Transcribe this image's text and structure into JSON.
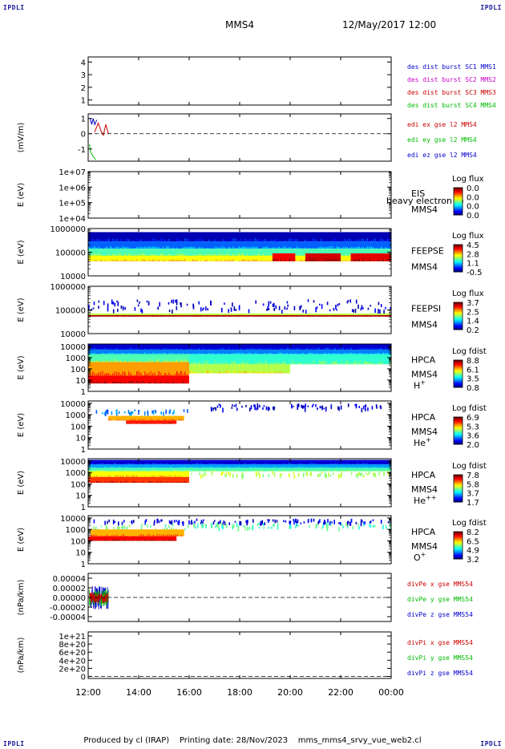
{
  "header": {
    "corner_label": "IPDLI",
    "spacecraft": "MMS4",
    "datetime": "12/May/2017 12:00"
  },
  "footer": {
    "produced_by": "Produced by cl (IRAP)",
    "printing_date": "Printing date: 28/Nov/2023",
    "filename": "mms_mms4_srvy_vue_web2.cl"
  },
  "chart_data": {
    "type": "heatmap",
    "time_axis": {
      "ticks": [
        "12:00",
        "14:00",
        "16:00",
        "18:00",
        "20:00",
        "22:00",
        "00:00"
      ],
      "range_hours": [
        12,
        24
      ]
    },
    "panels": [
      {
        "id": "des_dist",
        "kind": "line",
        "ylabel": "",
        "yticks": [
          "1",
          "2",
          "3",
          "4"
        ],
        "ylim": [
          0.6,
          4.4
        ],
        "legend": [
          {
            "name": "des dist burst SC1 MMS1",
            "color": "#0000cc"
          },
          {
            "name": "des dist burst SC2 MMS2",
            "color": "#cc00cc"
          },
          {
            "name": "des dist burst SC3 MMS3",
            "color": "#cc0000"
          },
          {
            "name": "des dist burst SC4 MMS4",
            "color": "#00bb00"
          }
        ],
        "series": []
      },
      {
        "id": "edi",
        "kind": "line",
        "ylabel": "(mV/m)",
        "yticks": [
          "-1",
          "0",
          "1"
        ],
        "ylim": [
          -1.8,
          1.3
        ],
        "zero_line": true,
        "legend": [
          {
            "name": "edi ex gse l2 MMS4",
            "color": "#cc0000"
          },
          {
            "name": "edi ey gse l2 MMS4",
            "color": "#00bb00"
          },
          {
            "name": "edi ez gse l2 MMS4",
            "color": "#0000cc"
          }
        ],
        "series": [
          {
            "color": "#00bb00",
            "x": [
              12.05,
              12.1,
              12.2,
              12.3
            ],
            "y": [
              -0.7,
              -1.2,
              -1.5,
              -1.7
            ]
          },
          {
            "color": "#0000cc",
            "x": [
              12.08,
              12.14,
              12.2,
              12.26,
              12.34
            ],
            "y": [
              1.0,
              0.6,
              1.0,
              0.6,
              0.9
            ]
          },
          {
            "color": "#cc0000",
            "x": [
              12.25,
              12.3,
              12.4,
              12.5,
              12.6,
              12.7,
              12.8
            ],
            "y": [
              0.1,
              0.3,
              0.7,
              0.2,
              -0.1,
              0.6,
              0.0
            ]
          }
        ]
      },
      {
        "id": "eis",
        "kind": "spectrogram",
        "ylog": true,
        "ylabel": "E (eV)",
        "yticks": [
          "1e+04",
          "1e+05",
          "1e+06",
          "1e+07"
        ],
        "ylim": [
          4,
          7
        ],
        "instrument": "EIS",
        "sc": "MMS4",
        "species": "",
        "overlay_text": "heavy electron to",
        "cbar_title": "Log flux",
        "cbar_ticks": [
          "0.0",
          "0.0",
          "0.0",
          "0.0"
        ],
        "bands": []
      },
      {
        "id": "feeps_e",
        "kind": "spectrogram",
        "ylog": true,
        "ylabel": "E (eV)",
        "yticks": [
          "10000",
          "100000",
          "1000000"
        ],
        "ylim": [
          4,
          6
        ],
        "instrument": "FEEPSE",
        "sc": "MMS4",
        "species": "",
        "cbar_title": "Log flux",
        "cbar_ticks": [
          "4.5",
          "2.8",
          "1.1",
          "-0.5"
        ],
        "bands": [
          {
            "t": [
              12.0,
              24.0
            ],
            "e": [
              5.45,
              5.85
            ],
            "v": 0.05
          },
          {
            "t": [
              12.0,
              24.0
            ],
            "e": [
              5.15,
              5.45
            ],
            "v": 0.22
          },
          {
            "t": [
              12.0,
              24.0
            ],
            "e": [
              4.85,
              5.15
            ],
            "v": 0.45
          },
          {
            "t": [
              12.0,
              24.0
            ],
            "e": [
              4.62,
              4.85
            ],
            "v": 0.62
          },
          {
            "t": [
              19.3,
              20.2
            ],
            "e": [
              4.62,
              4.95
            ],
            "v": 0.88
          },
          {
            "t": [
              20.6,
              22.0
            ],
            "e": [
              4.62,
              4.95
            ],
            "v": 0.92
          },
          {
            "t": [
              22.4,
              24.0
            ],
            "e": [
              4.62,
              4.95
            ],
            "v": 0.9
          }
        ]
      },
      {
        "id": "feeps_i",
        "kind": "spectrogram",
        "ylog": true,
        "ylabel": "E (eV)",
        "yticks": [
          "10000",
          "100000",
          "1000000"
        ],
        "ylim": [
          4,
          6
        ],
        "instrument": "FEEPSI",
        "sc": "MMS4",
        "species": "",
        "cbar_title": "Log flux",
        "cbar_ticks": [
          "3.7",
          "2.5",
          "1.4",
          "0.2"
        ],
        "bands": [
          {
            "t": [
              12.0,
              24.0
            ],
            "e": [
              5.0,
              5.45
            ],
            "v": 0.08,
            "sparse": true
          },
          {
            "t": [
              12.0,
              24.0
            ],
            "e": [
              4.78,
              4.85
            ],
            "v": 0.55
          },
          {
            "t": [
              12.0,
              24.0
            ],
            "e": [
              4.72,
              4.78
            ],
            "v": 0.95
          }
        ]
      },
      {
        "id": "hpca_h",
        "kind": "spectrogram",
        "ylog": true,
        "ylabel": "E (eV)",
        "yticks": [
          "1",
          "10",
          "100",
          "1000",
          "10000"
        ],
        "ylim": [
          0,
          4.2
        ],
        "instrument": "HPCA",
        "sc": "MMS4",
        "species": "H",
        "charge": "+",
        "cbar_title": "Log fdist",
        "cbar_ticks": [
          "8.8",
          "6.1",
          "3.5",
          "0.8"
        ],
        "bands": [
          {
            "t": [
              12.0,
              24.0
            ],
            "e": [
              3.7,
              4.2
            ],
            "v": 0.08
          },
          {
            "t": [
              12.0,
              24.0
            ],
            "e": [
              3.3,
              3.7
            ],
            "v": 0.25
          },
          {
            "t": [
              12.0,
              16.0
            ],
            "e": [
              2.6,
              3.3
            ],
            "v": 0.45
          },
          {
            "t": [
              16.0,
              24.0
            ],
            "e": [
              2.4,
              3.3
            ],
            "v": 0.42
          },
          {
            "t": [
              12.0,
              16.0
            ],
            "e": [
              1.4,
              2.6
            ],
            "v": 0.72
          },
          {
            "t": [
              12.0,
              16.0
            ],
            "e": [
              0.7,
              1.4
            ],
            "v": 0.88
          },
          {
            "t": [
              16.0,
              20.0
            ],
            "e": [
              1.6,
              2.4
            ],
            "v": 0.55
          }
        ]
      },
      {
        "id": "hpca_he1",
        "kind": "spectrogram",
        "ylog": true,
        "ylabel": "E (eV)",
        "yticks": [
          "1",
          "10",
          "100",
          "1000",
          "10000"
        ],
        "ylim": [
          0,
          4.2
        ],
        "instrument": "HPCA",
        "sc": "MMS4",
        "species": "He",
        "charge": "+",
        "cbar_title": "Log fdist",
        "cbar_ticks": [
          "6.9",
          "5.3",
          "3.6",
          "2.0"
        ],
        "bands": [
          {
            "t": [
              12.3,
              16.0
            ],
            "e": [
              3.2,
              3.5
            ],
            "v": 0.25,
            "sparse": true
          },
          {
            "t": [
              12.8,
              15.8
            ],
            "e": [
              2.5,
              2.9
            ],
            "v": 0.7
          },
          {
            "t": [
              13.5,
              15.5
            ],
            "e": [
              2.2,
              2.5
            ],
            "v": 0.85
          },
          {
            "t": [
              16.5,
              24.0
            ],
            "e": [
              3.6,
              4.0
            ],
            "v": 0.08,
            "sparse": true
          }
        ]
      },
      {
        "id": "hpca_he2",
        "kind": "spectrogram",
        "ylog": true,
        "ylabel": "E (eV)",
        "yticks": [
          "1",
          "10",
          "100",
          "1000",
          "10000"
        ],
        "ylim": [
          0,
          4.2
        ],
        "instrument": "HPCA",
        "sc": "MMS4",
        "species": "He",
        "charge": "++",
        "cbar_title": "Log fdist",
        "cbar_ticks": [
          "7.8",
          "5.8",
          "3.7",
          "1.7"
        ],
        "bands": [
          {
            "t": [
              12.0,
              24.0
            ],
            "e": [
              3.7,
              4.1
            ],
            "v": 0.08
          },
          {
            "t": [
              12.0,
              24.0
            ],
            "e": [
              3.4,
              3.7
            ],
            "v": 0.28
          },
          {
            "t": [
              12.0,
              24.0
            ],
            "e": [
              3.1,
              3.4
            ],
            "v": 0.45
          },
          {
            "t": [
              12.0,
              16.0
            ],
            "e": [
              2.6,
              3.1
            ],
            "v": 0.62
          },
          {
            "t": [
              12.0,
              16.0
            ],
            "e": [
              2.1,
              2.6
            ],
            "v": 0.82
          },
          {
            "t": [
              16.0,
              24.0
            ],
            "e": [
              2.8,
              3.1
            ],
            "v": 0.55,
            "sparse": true
          }
        ]
      },
      {
        "id": "hpca_o",
        "kind": "spectrogram",
        "ylog": true,
        "ylabel": "E (eV)",
        "yticks": [
          "1",
          "10",
          "100",
          "1000",
          "10000"
        ],
        "ylim": [
          0,
          4.2
        ],
        "instrument": "HPCA",
        "sc": "MMS4",
        "species": "O",
        "charge": "+",
        "cbar_title": "Log fdist",
        "cbar_ticks": [
          "8.2",
          "6.5",
          "4.9",
          "3.2"
        ],
        "bands": [
          {
            "t": [
              12.0,
              24.0
            ],
            "e": [
              3.6,
              3.95
            ],
            "v": 0.1,
            "sparse": true
          },
          {
            "t": [
              12.0,
              16.0
            ],
            "e": [
              3.0,
              3.5
            ],
            "v": 0.5,
            "sparse": true
          },
          {
            "t": [
              12.1,
              15.8
            ],
            "e": [
              2.4,
              3.0
            ],
            "v": 0.7
          },
          {
            "t": [
              12.0,
              15.5
            ],
            "e": [
              2.0,
              2.4
            ],
            "v": 0.88
          },
          {
            "t": [
              16.0,
              24.0
            ],
            "e": [
              3.2,
              3.6
            ],
            "v": 0.45,
            "sparse": true
          }
        ]
      },
      {
        "id": "divpe",
        "kind": "line",
        "ylabel": "(nPa/km)",
        "yticks": [
          "-0.00004",
          "-0.00002",
          "0.00000",
          "0.00002",
          "0.00004"
        ],
        "ylim": [
          -5e-05,
          5e-05
        ],
        "zero_line": true,
        "legend": [
          {
            "name": "divPe x gse MMS54",
            "color": "#cc0000"
          },
          {
            "name": "divPe y gse MMS54",
            "color": "#00bb00"
          },
          {
            "name": "divPe z gse MMS54",
            "color": "#0000cc"
          }
        ],
        "noise": {
          "t": [
            12.05,
            12.8
          ],
          "amp": [
            2.5e-05,
            1.8e-05,
            1.2e-05
          ]
        }
      },
      {
        "id": "divpi",
        "kind": "line",
        "ylabel": "(nPa/km)",
        "yticks": [
          "0",
          "2e+20",
          "4e+20",
          "6e+20",
          "8e+20",
          "1e+21"
        ],
        "ylim": [
          -5e+19,
          1.1e+21
        ],
        "zero_line": true,
        "legend": [
          {
            "name": "divPi x gse MMS54",
            "color": "#cc0000"
          },
          {
            "name": "divPi y gse MMS54",
            "color": "#00bb00"
          },
          {
            "name": "divPi z gse MMS54",
            "color": "#0000cc"
          }
        ],
        "series": []
      }
    ]
  }
}
